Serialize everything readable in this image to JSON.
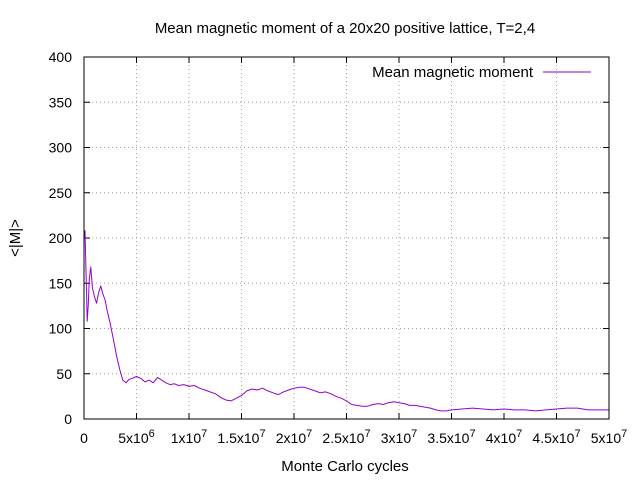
{
  "chart_data": {
    "type": "line",
    "title": "Mean magnetic moment of a 20x20 positive lattice, T=2,4",
    "xlabel": "Monte Carlo cycles",
    "ylabel": "<|M|>",
    "xlim": [
      0,
      50000000
    ],
    "ylim": [
      0,
      400
    ],
    "grid": true,
    "legend_position": "top-right",
    "x_tick_labels": [
      "0",
      "5x10 6",
      "1x10 7",
      "1.5x10 7",
      "2x10 7",
      "2.5x10 7",
      "3x10 7",
      "3.5x10 7",
      "4x10 7",
      "4.5x10 7",
      "5x10 7"
    ],
    "x_tick_values": [
      0,
      5000000,
      10000000,
      15000000,
      20000000,
      25000000,
      30000000,
      35000000,
      40000000,
      45000000,
      50000000
    ],
    "y_tick_labels": [
      "0",
      "50",
      "100",
      "150",
      "200",
      "250",
      "300",
      "350",
      "400"
    ],
    "y_tick_values": [
      0,
      50,
      100,
      150,
      200,
      250,
      300,
      350,
      400
    ],
    "series": [
      {
        "name": "Mean magnetic moment",
        "color": "#9400d3",
        "x": [
          0,
          100000,
          200000,
          300000,
          400000,
          500000,
          650000,
          800000,
          1000000,
          1200000,
          1400000,
          1600000,
          1800000,
          2000000,
          2200000,
          2500000,
          2800000,
          3100000,
          3400000,
          3700000,
          4000000,
          4300000,
          4600000,
          5000000,
          5400000,
          5800000,
          6200000,
          6600000,
          7000000,
          7400000,
          7800000,
          8200000,
          8600000,
          9000000,
          9500000,
          10000000,
          10500000,
          11000000,
          11500000,
          12000000,
          12500000,
          13000000,
          13500000,
          14000000,
          14500000,
          15000000,
          15500000,
          16000000,
          16500000,
          17000000,
          17500000,
          18000000,
          18500000,
          19000000,
          19500000,
          20000000,
          20500000,
          21000000,
          21500000,
          22000000,
          22500000,
          23000000,
          23500000,
          24000000,
          24500000,
          25000000,
          25500000,
          26000000,
          26500000,
          27000000,
          27500000,
          28000000,
          28500000,
          29000000,
          29500000,
          30000000,
          30500000,
          31000000,
          31500000,
          32000000,
          32500000,
          33000000,
          33500000,
          34000000,
          34500000,
          35000000,
          36000000,
          37000000,
          38000000,
          39000000,
          40000000,
          41000000,
          42000000,
          43000000,
          44000000,
          45000000,
          46000000,
          47000000,
          48000000,
          49000000,
          50000000
        ],
        "y": [
          200,
          208,
          160,
          108,
          125,
          155,
          168,
          145,
          135,
          128,
          140,
          147,
          138,
          132,
          120,
          105,
          88,
          70,
          55,
          43,
          40,
          44,
          45,
          47,
          45,
          41,
          43,
          40,
          46,
          43,
          40,
          38,
          39,
          37,
          38,
          36,
          37,
          34,
          32,
          30,
          28,
          24,
          21,
          20,
          23,
          26,
          31,
          33,
          32,
          34,
          31,
          29,
          27,
          30,
          32,
          34,
          35,
          35,
          33,
          31,
          29,
          30,
          28,
          25,
          23,
          20,
          16,
          15,
          14,
          14,
          16,
          17,
          16,
          18,
          19,
          18,
          17,
          15,
          15,
          14,
          13,
          12,
          10,
          9,
          9,
          10,
          11,
          12,
          11,
          10,
          11,
          10,
          10,
          9,
          10,
          11,
          12,
          12,
          10,
          10,
          10
        ]
      }
    ]
  }
}
